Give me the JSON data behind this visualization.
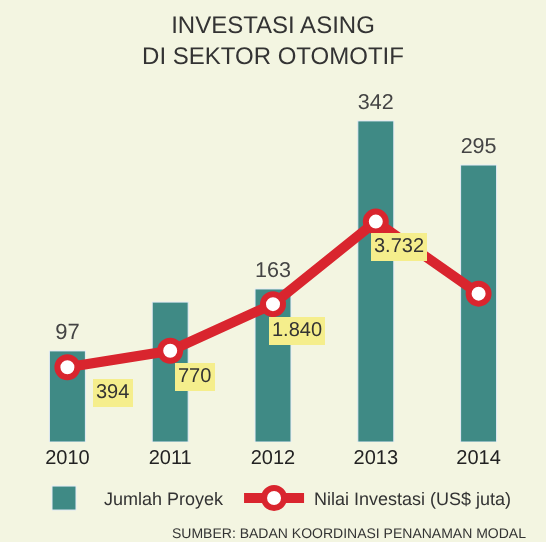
{
  "chart_data": {
    "type": "bar",
    "title": "INVESTASI ASING\nDI SEKTOR OTOMOTIF",
    "categories": [
      "2010",
      "2011",
      "2012",
      "2013",
      "2014"
    ],
    "series": [
      {
        "name": "Jumlah Proyek",
        "color": "#3f8a85",
        "values": [
          97,
          149,
          163,
          342,
          295
        ],
        "value_labels": [
          "97",
          null,
          "163",
          "342",
          "295"
        ]
      },
      {
        "name": "Nilai Investasi (US$ juta)",
        "type": "line",
        "axis": "y2",
        "color": "#d9252e",
        "marker": "circle",
        "values": [
          394,
          770,
          1840,
          3732,
          2080
        ],
        "value_labels": [
          "394",
          "770",
          "1.840",
          "3.732",
          null
        ]
      }
    ],
    "tick_labels": "x",
    "grid": false,
    "legend": "bottom",
    "annotations": [
      "SUMBER: BADAN KOORDINASI PENANAMAN MODAL"
    ]
  }
}
